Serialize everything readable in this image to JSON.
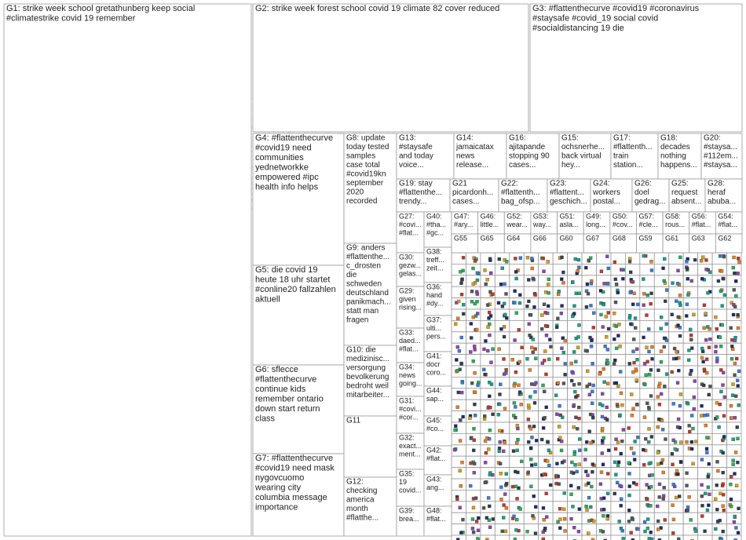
{
  "groups": [
    {
      "lines": [
        "G1: strike week school gretathunberg keep social",
        "#climatestrike covid 19 remember"
      ]
    },
    {
      "lines": [
        "G2: strike week forest school covid 19 climate 82 cover reduced"
      ]
    },
    {
      "lines": [
        "G3: #flattenthecurve #covid19 #coronavirus",
        "#staysafe #covid_19 social covid",
        "#socialdistancing 19 die"
      ]
    },
    {
      "lines": [
        "G4: #flattenthecurve",
        "#covid19 need",
        "communities",
        "yednetworkke",
        "empowered #ipc",
        "health info helps"
      ]
    },
    {
      "lines": [
        "G5: die covid 19",
        "heute 18 uhr startet",
        "#conline20 fallzahlen",
        "aktuell"
      ]
    },
    {
      "lines": [
        "G6: sflecce",
        "#flattenthecurve",
        "continue kids",
        "remember ontario",
        "down start return",
        "class"
      ]
    },
    {
      "lines": [
        "G7: #flattenthecurve",
        "#covid19 need mask",
        "nygovcuomo",
        "wearing city",
        "columbia message",
        "importance"
      ]
    },
    {
      "lines": [
        "G8: update",
        "today tested",
        "samples",
        "case total",
        "#covid19kn",
        "september",
        "2020",
        "recorded"
      ]
    },
    {
      "lines": [
        "G9: anders",
        "#flattenthe...",
        "c_drosten",
        "die",
        "schweden",
        "deutschland",
        "panikmach...",
        "statt man",
        "fragen"
      ]
    },
    {
      "lines": [
        "G10: die",
        "medizinisc...",
        "versorgung",
        "bevolkerung",
        "bedroht weil",
        "mitarbeiter..."
      ]
    },
    {
      "lines": [
        "G11"
      ]
    },
    {
      "lines": [
        "G12:",
        "checking",
        "america",
        "month",
        "#flatthe..."
      ]
    },
    {
      "lines": [
        "G13:",
        "#staysafe",
        "and today",
        "voice..."
      ]
    },
    {
      "lines": [
        "G14:",
        "jamaicatax",
        "news",
        "release..."
      ]
    },
    {
      "lines": [
        "G16:",
        "ajitapande",
        "stopping 90",
        "cases..."
      ]
    },
    {
      "lines": [
        "G15:",
        "ochsnerhe...",
        "back virtual",
        "hey..."
      ]
    },
    {
      "lines": [
        "G17:",
        "#flattenth...",
        "train",
        "station..."
      ]
    },
    {
      "lines": [
        "G18:",
        "decades",
        "nothing",
        "happens..."
      ]
    },
    {
      "lines": [
        "G20:",
        "#staysa...",
        "#112em...",
        "#staysa..."
      ]
    },
    {
      "lines": [
        "G19: stay",
        "#flattenthe...",
        "trendy..."
      ]
    },
    {
      "lines": [
        "G21",
        "picardonh...",
        "cases..."
      ]
    },
    {
      "lines": [
        "G22:",
        "#flattenth...",
        "bag_ofsp..."
      ]
    },
    {
      "lines": [
        "G23:",
        "#flattent...",
        "geschich..."
      ]
    },
    {
      "lines": [
        "G24:",
        "workers",
        "postal..."
      ]
    },
    {
      "lines": [
        "G26:",
        "doel",
        "gedrag..."
      ]
    },
    {
      "lines": [
        "G25:",
        "request",
        "absent..."
      ]
    },
    {
      "lines": [
        "G28:",
        "heraf",
        "abuba..."
      ]
    },
    {
      "lines": [
        "G27:",
        "#covi...",
        "#flat..."
      ]
    },
    {
      "lines": [
        "G30:",
        "gezw...",
        "gelas..."
      ]
    },
    {
      "lines": [
        "G29:",
        "given",
        "rising..."
      ]
    },
    {
      "lines": [
        "G33:",
        "daed...",
        "#flat..."
      ]
    },
    {
      "lines": [
        "G34:",
        "news",
        "going..."
      ]
    },
    {
      "lines": [
        "G31:",
        "#covi...",
        "#cor..."
      ]
    },
    {
      "lines": [
        "G32:",
        "exact...",
        "ment..."
      ]
    },
    {
      "lines": [
        "G35:",
        "19",
        "covid..."
      ]
    },
    {
      "lines": [
        "G39:",
        "brea..."
      ]
    },
    {
      "lines": [
        "G40:",
        "#tha...",
        "#gc..."
      ]
    },
    {
      "lines": [
        "G38:",
        "treff...",
        "zeit..."
      ]
    },
    {
      "lines": [
        "G36:",
        "hand",
        "#dy..."
      ]
    },
    {
      "lines": [
        "G37:",
        "ulti...",
        "pers..."
      ]
    },
    {
      "lines": [
        "G41:",
        "docr",
        "coro..."
      ]
    },
    {
      "lines": [
        "G44:",
        "sap..."
      ]
    },
    {
      "lines": [
        "G45:",
        "#co..."
      ]
    },
    {
      "lines": [
        "G42:",
        "#flat..."
      ]
    },
    {
      "lines": [
        "G43:",
        "ang..."
      ]
    },
    {
      "lines": [
        "G48:",
        "#flat..."
      ]
    },
    {
      "lines": [
        "G47:",
        "#ary..."
      ]
    },
    {
      "lines": [
        "G46:",
        "little..."
      ]
    },
    {
      "lines": [
        "G52:",
        "wear..."
      ]
    },
    {
      "lines": [
        "G53:",
        "way..."
      ]
    },
    {
      "lines": [
        "G51:",
        "asla..."
      ]
    },
    {
      "lines": [
        "G49:",
        "long..."
      ]
    },
    {
      "lines": [
        "G50:",
        "#cov..."
      ]
    },
    {
      "lines": [
        "G57:",
        "#cle..."
      ]
    },
    {
      "lines": [
        "G58:",
        "rous..."
      ]
    },
    {
      "lines": [
        "G56:",
        "#flat..."
      ]
    },
    {
      "lines": [
        "G54:",
        "#flat..."
      ]
    },
    {
      "lines": [
        "G55"
      ]
    },
    {
      "lines": [
        "G65"
      ]
    },
    {
      "lines": [
        "G64"
      ]
    },
    {
      "lines": [
        "G66"
      ]
    },
    {
      "lines": [
        "G60"
      ]
    },
    {
      "lines": [
        "G67"
      ]
    },
    {
      "lines": [
        "G68"
      ]
    },
    {
      "lines": [
        "G59"
      ]
    },
    {
      "lines": [
        "G61"
      ]
    },
    {
      "lines": [
        "G63"
      ]
    },
    {
      "lines": [
        "G62"
      ]
    }
  ]
}
